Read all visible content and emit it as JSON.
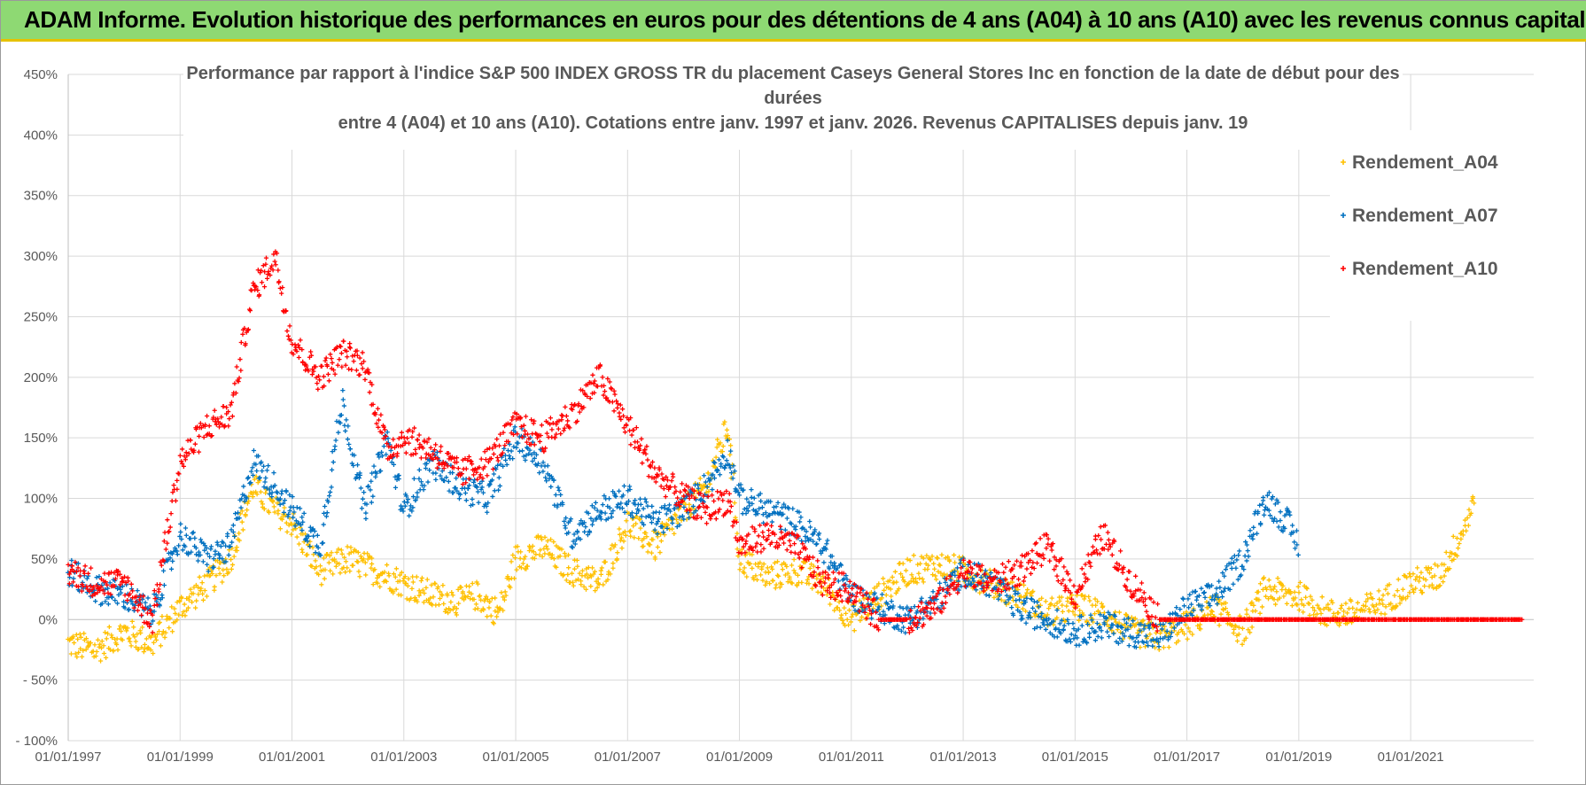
{
  "banner": {
    "title": "ADAM Informe. Evolution historique des performances en euros pour des détentions de 4 ans (A04) à 10 ans (A10) avec les revenus connus capitalisés"
  },
  "colors": {
    "banner_bg": "#8ed973",
    "banner_border": "#e6c200",
    "A04": "#ffc000",
    "A07": "#0070c0",
    "A10": "#ff0000",
    "grid": "#d9d9d9",
    "text": "#595959"
  },
  "chart_data": {
    "type": "scatter",
    "title": [
      "Performance par rapport à l'indice S&P 500 INDEX GROSS TR  du placement Caseys General Stores Inc en fonction de la date de début pour des",
      "durées",
      "entre 4 (A04) et 10 ans (A10).  Cotations entre janv. 1997 et janv. 2026. Revenus CAPITALISES depuis janv. 19"
    ],
    "xlabel": "",
    "ylabel": "",
    "xlim": [
      1997.0,
      2023.2
    ],
    "ylim": [
      -100,
      450
    ],
    "x_ticks": [
      1997,
      1999,
      2001,
      2003,
      2005,
      2007,
      2009,
      2011,
      2013,
      2015,
      2017,
      2019,
      2021
    ],
    "x_tick_labels": [
      "01/01/1997",
      "01/01/1999",
      "01/01/2001",
      "01/01/2003",
      "01/01/2005",
      "01/01/2007",
      "01/01/2009",
      "01/01/2011",
      "01/01/2013",
      "01/01/2015",
      "01/01/2017",
      "01/01/2019",
      "01/01/2021"
    ],
    "y_ticks": [
      -100,
      -50,
      0,
      50,
      100,
      150,
      200,
      250,
      300,
      350,
      400,
      450
    ],
    "y_tick_labels": [
      "- 100%",
      "- 50%",
      "0%",
      "50%",
      "100%",
      "150%",
      "200%",
      "250%",
      "300%",
      "350%",
      "400%",
      "450%"
    ],
    "grid": true,
    "legend_position": "top-right",
    "marker": "+",
    "series": [
      {
        "name": "Rendement_A04",
        "color": "#ffc000",
        "x": [
          1997.0,
          1997.5,
          1998.0,
          1998.5,
          1999.0,
          1999.5,
          1999.9,
          2000.3,
          2000.7,
          2001.0,
          2001.5,
          2002.0,
          2002.5,
          2003.0,
          2003.5,
          2004.0,
          2004.3,
          2004.7,
          2005.0,
          2005.5,
          2006.0,
          2006.5,
          2007.0,
          2007.5,
          2008.0,
          2008.4,
          2008.8,
          2009.0,
          2009.5,
          2010.0,
          2010.5,
          2011.0,
          2011.5,
          2012.0,
          2012.5,
          2013.0,
          2013.5,
          2014.0,
          2014.5,
          2015.0,
          2015.5,
          2016.0,
          2016.5,
          2017.0,
          2017.5,
          2018.0,
          2018.4,
          2018.8,
          2019.0,
          2019.5,
          2020.0,
          2020.5,
          2021.0,
          2021.5,
          2021.9,
          2022.15
        ],
        "y": [
          -20,
          -25,
          -10,
          -20,
          10,
          30,
          50,
          110,
          90,
          80,
          40,
          50,
          40,
          30,
          20,
          15,
          20,
          5,
          50,
          60,
          40,
          30,
          80,
          60,
          90,
          110,
          160,
          50,
          35,
          40,
          30,
          0,
          20,
          40,
          45,
          40,
          30,
          20,
          5,
          10,
          5,
          -10,
          -15,
          -5,
          10,
          -10,
          25,
          20,
          20,
          5,
          5,
          15,
          30,
          35,
          70,
          100
        ]
      },
      {
        "name": "Rendement_A07",
        "color": "#0070c0",
        "x": [
          1997.0,
          1997.5,
          1998.0,
          1998.5,
          1999.0,
          1999.5,
          1999.9,
          2000.3,
          2000.7,
          2001.0,
          2001.5,
          2001.9,
          2002.3,
          2002.7,
          2003.0,
          2003.5,
          2004.0,
          2004.5,
          2005.0,
          2005.5,
          2006.0,
          2006.5,
          2007.0,
          2007.5,
          2008.0,
          2008.4,
          2008.8,
          2009.0,
          2009.5,
          2010.0,
          2010.5,
          2011.0,
          2011.5,
          2012.0,
          2012.5,
          2013.0,
          2013.5,
          2014.0,
          2014.5,
          2015.0,
          2015.5,
          2016.0,
          2016.5,
          2017.0,
          2017.5,
          2018.0,
          2018.4,
          2018.8,
          2019.0
        ],
        "y": [
          40,
          25,
          20,
          5,
          70,
          50,
          60,
          130,
          110,
          90,
          60,
          180,
          90,
          150,
          90,
          130,
          110,
          100,
          150,
          130,
          70,
          90,
          100,
          80,
          90,
          110,
          140,
          100,
          90,
          80,
          60,
          20,
          10,
          0,
          15,
          40,
          30,
          10,
          0,
          -10,
          -5,
          -10,
          -15,
          10,
          20,
          50,
          100,
          80,
          60
        ]
      },
      {
        "name": "Rendement_A10",
        "color": "#ff0000",
        "x": [
          1997.0,
          1997.5,
          1998.0,
          1998.5,
          1999.0,
          1999.5,
          1999.9,
          2000.3,
          2000.7,
          2001.0,
          2001.5,
          2001.9,
          2002.3,
          2002.7,
          2003.0,
          2003.5,
          2004.0,
          2004.5,
          2005.0,
          2005.5,
          2006.0,
          2006.5,
          2007.0,
          2007.5,
          2008.0,
          2008.4,
          2008.8,
          2009.0,
          2009.5,
          2010.0,
          2010.5,
          2011.0,
          2011.5,
          2012.0,
          2012.5,
          2013.0,
          2013.5,
          2014.0,
          2014.5,
          2015.0,
          2015.5,
          2016.0,
          2016.2,
          2016.5,
          2017.0,
          2017.5,
          2018.0,
          2018.5,
          2019.0,
          2019.5,
          2020.0,
          2020.5,
          2021.0,
          2021.5,
          2022.0,
          2022.5,
          2023.0
        ],
        "y": [
          40,
          30,
          30,
          0,
          130,
          160,
          170,
          270,
          300,
          230,
          200,
          220,
          210,
          140,
          150,
          140,
          120,
          130,
          160,
          150,
          170,
          200,
          160,
          120,
          100,
          90,
          100,
          60,
          70,
          60,
          30,
          25,
          0,
          0,
          10,
          40,
          30,
          40,
          60,
          20,
          70,
          30,
          20,
          0,
          0,
          0,
          0,
          0,
          0,
          0,
          0,
          0,
          0,
          0,
          0,
          0,
          0
        ]
      }
    ]
  }
}
